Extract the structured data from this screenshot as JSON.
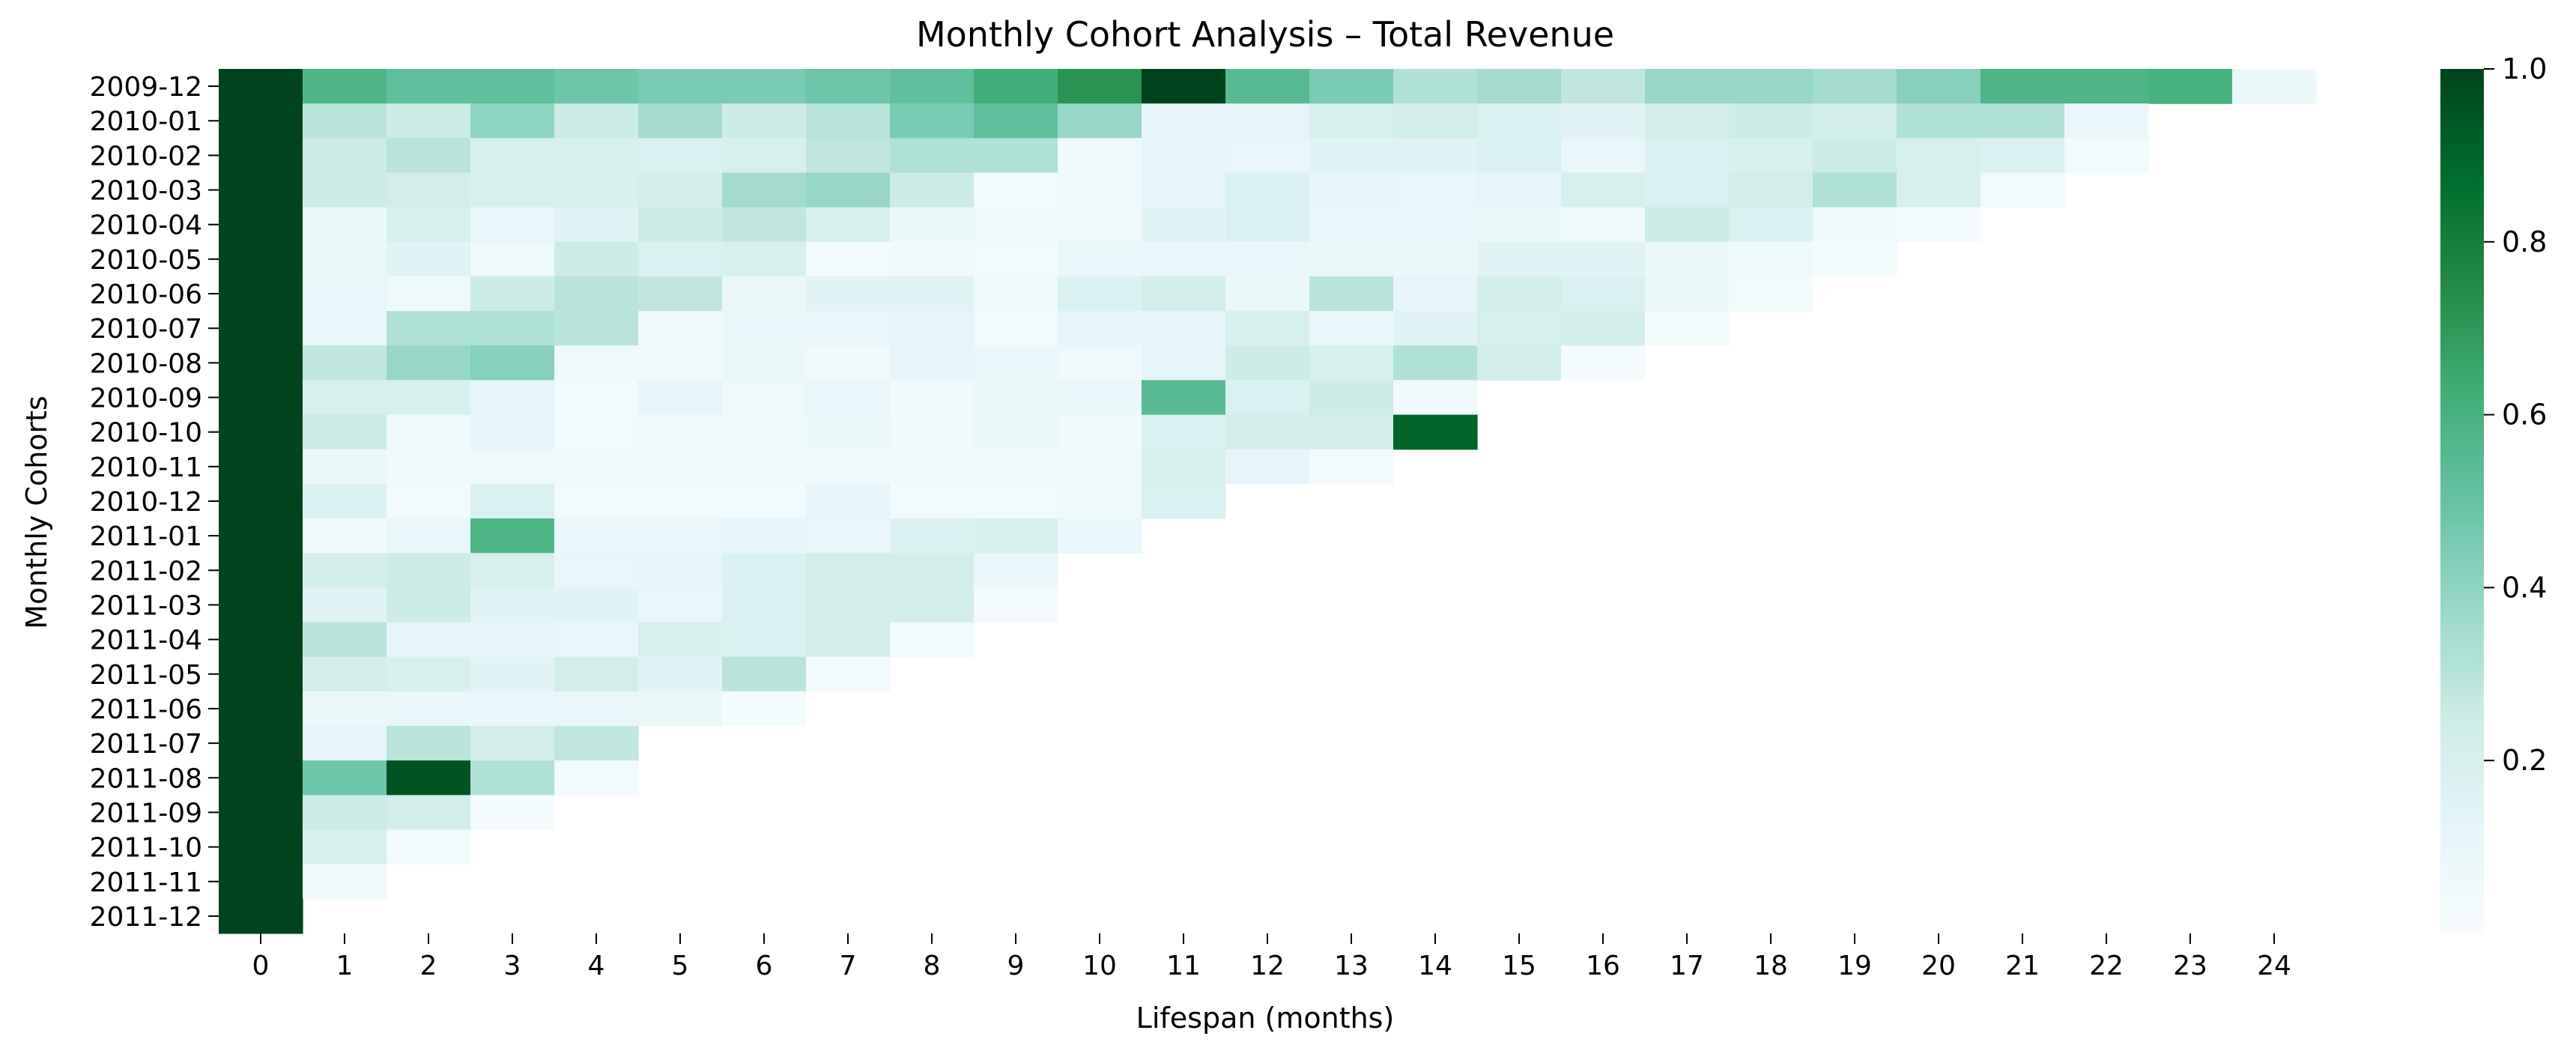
{
  "chart_data": {
    "type": "heatmap",
    "title": "Monthly Cohort Analysis – Total Revenue",
    "xlabel": "Lifespan (months)",
    "ylabel": "Monthly Cohorts",
    "x": [
      "0",
      "1",
      "2",
      "3",
      "4",
      "5",
      "6",
      "7",
      "8",
      "9",
      "10",
      "11",
      "12",
      "13",
      "14",
      "15",
      "16",
      "17",
      "18",
      "19",
      "20",
      "21",
      "22",
      "23",
      "24"
    ],
    "y": [
      "2009-12",
      "2010-01",
      "2010-02",
      "2010-03",
      "2010-04",
      "2010-05",
      "2010-06",
      "2010-07",
      "2010-08",
      "2010-09",
      "2010-10",
      "2010-11",
      "2010-12",
      "2011-01",
      "2011-02",
      "2011-03",
      "2011-04",
      "2011-05",
      "2011-06",
      "2011-07",
      "2011-08",
      "2011-09",
      "2011-10",
      "2011-11",
      "2011-12"
    ],
    "values": [
      [
        1.0,
        0.58,
        0.52,
        0.52,
        0.48,
        0.45,
        0.45,
        0.48,
        0.52,
        0.62,
        0.72,
        1.0,
        0.55,
        0.45,
        0.32,
        0.35,
        0.28,
        0.38,
        0.38,
        0.35,
        0.42,
        0.58,
        0.58,
        0.6,
        0.08
      ],
      [
        1.0,
        0.3,
        0.25,
        0.4,
        0.25,
        0.35,
        0.25,
        0.3,
        0.45,
        0.52,
        0.38,
        0.12,
        0.12,
        0.2,
        0.22,
        0.18,
        0.15,
        0.22,
        0.25,
        0.22,
        0.32,
        0.32,
        0.1
      ],
      [
        1.0,
        0.25,
        0.3,
        0.2,
        0.2,
        0.18,
        0.2,
        0.28,
        0.32,
        0.32,
        0.05,
        0.12,
        0.1,
        0.15,
        0.15,
        0.18,
        0.1,
        0.18,
        0.2,
        0.25,
        0.2,
        0.18,
        0.04
      ],
      [
        1.0,
        0.25,
        0.22,
        0.2,
        0.2,
        0.22,
        0.35,
        0.38,
        0.25,
        0.04,
        0.06,
        0.12,
        0.18,
        0.12,
        0.1,
        0.12,
        0.2,
        0.18,
        0.22,
        0.32,
        0.2,
        0.04
      ],
      [
        1.0,
        0.08,
        0.2,
        0.1,
        0.15,
        0.25,
        0.28,
        0.2,
        0.08,
        0.06,
        0.06,
        0.15,
        0.18,
        0.1,
        0.1,
        0.08,
        0.06,
        0.25,
        0.18,
        0.06,
        0.02
      ],
      [
        1.0,
        0.08,
        0.15,
        0.06,
        0.25,
        0.18,
        0.2,
        0.03,
        0.05,
        0.04,
        0.1,
        0.1,
        0.1,
        0.08,
        0.08,
        0.15,
        0.15,
        0.08,
        0.06,
        0.02
      ],
      [
        1.0,
        0.1,
        0.06,
        0.25,
        0.3,
        0.28,
        0.08,
        0.15,
        0.15,
        0.06,
        0.18,
        0.22,
        0.08,
        0.3,
        0.12,
        0.22,
        0.18,
        0.08,
        0.03
      ],
      [
        1.0,
        0.1,
        0.32,
        0.32,
        0.3,
        0.06,
        0.1,
        0.1,
        0.12,
        0.04,
        0.12,
        0.12,
        0.2,
        0.1,
        0.15,
        0.2,
        0.22,
        0.03
      ],
      [
        1.0,
        0.28,
        0.38,
        0.42,
        0.06,
        0.05,
        0.08,
        0.05,
        0.12,
        0.1,
        0.06,
        0.12,
        0.25,
        0.2,
        0.32,
        0.22,
        0.02
      ],
      [
        1.0,
        0.2,
        0.2,
        0.12,
        0.04,
        0.12,
        0.06,
        0.1,
        0.05,
        0.08,
        0.1,
        0.55,
        0.18,
        0.25,
        0.05
      ],
      [
        1.0,
        0.25,
        0.05,
        0.12,
        0.04,
        0.06,
        0.06,
        0.08,
        0.05,
        0.08,
        0.05,
        0.18,
        0.22,
        0.22,
        0.9
      ],
      [
        1.0,
        0.08,
        0.05,
        0.06,
        0.05,
        0.06,
        0.06,
        0.05,
        0.05,
        0.06,
        0.06,
        0.2,
        0.12,
        0.03
      ],
      [
        1.0,
        0.18,
        0.04,
        0.18,
        0.04,
        0.04,
        0.04,
        0.12,
        0.04,
        0.04,
        0.06,
        0.18
      ],
      [
        1.0,
        0.05,
        0.1,
        0.58,
        0.1,
        0.1,
        0.12,
        0.1,
        0.18,
        0.2,
        0.1
      ],
      [
        1.0,
        0.22,
        0.25,
        0.2,
        0.1,
        0.12,
        0.18,
        0.22,
        0.22,
        0.1
      ],
      [
        1.0,
        0.15,
        0.25,
        0.15,
        0.15,
        0.1,
        0.18,
        0.22,
        0.22,
        0.03
      ],
      [
        1.0,
        0.3,
        0.12,
        0.12,
        0.1,
        0.2,
        0.18,
        0.22,
        0.04
      ],
      [
        1.0,
        0.22,
        0.2,
        0.15,
        0.22,
        0.15,
        0.3,
        0.03
      ],
      [
        1.0,
        0.08,
        0.1,
        0.1,
        0.1,
        0.08,
        0.02
      ],
      [
        1.0,
        0.12,
        0.3,
        0.22,
        0.28
      ],
      [
        1.0,
        0.48,
        0.95,
        0.32,
        0.04
      ],
      [
        1.0,
        0.25,
        0.22,
        0.02
      ],
      [
        1.0,
        0.2,
        0.04
      ],
      [
        1.0,
        0.05
      ],
      [
        1.0
      ]
    ],
    "colorbar": {
      "range": [
        0,
        1.0
      ],
      "ticks": [
        "0.2",
        "0.4",
        "0.6",
        "0.8",
        "1.0"
      ],
      "tick_values": [
        0.2,
        0.4,
        0.6,
        0.8,
        1.0
      ],
      "colormap": "BuGn"
    },
    "grid": false
  }
}
